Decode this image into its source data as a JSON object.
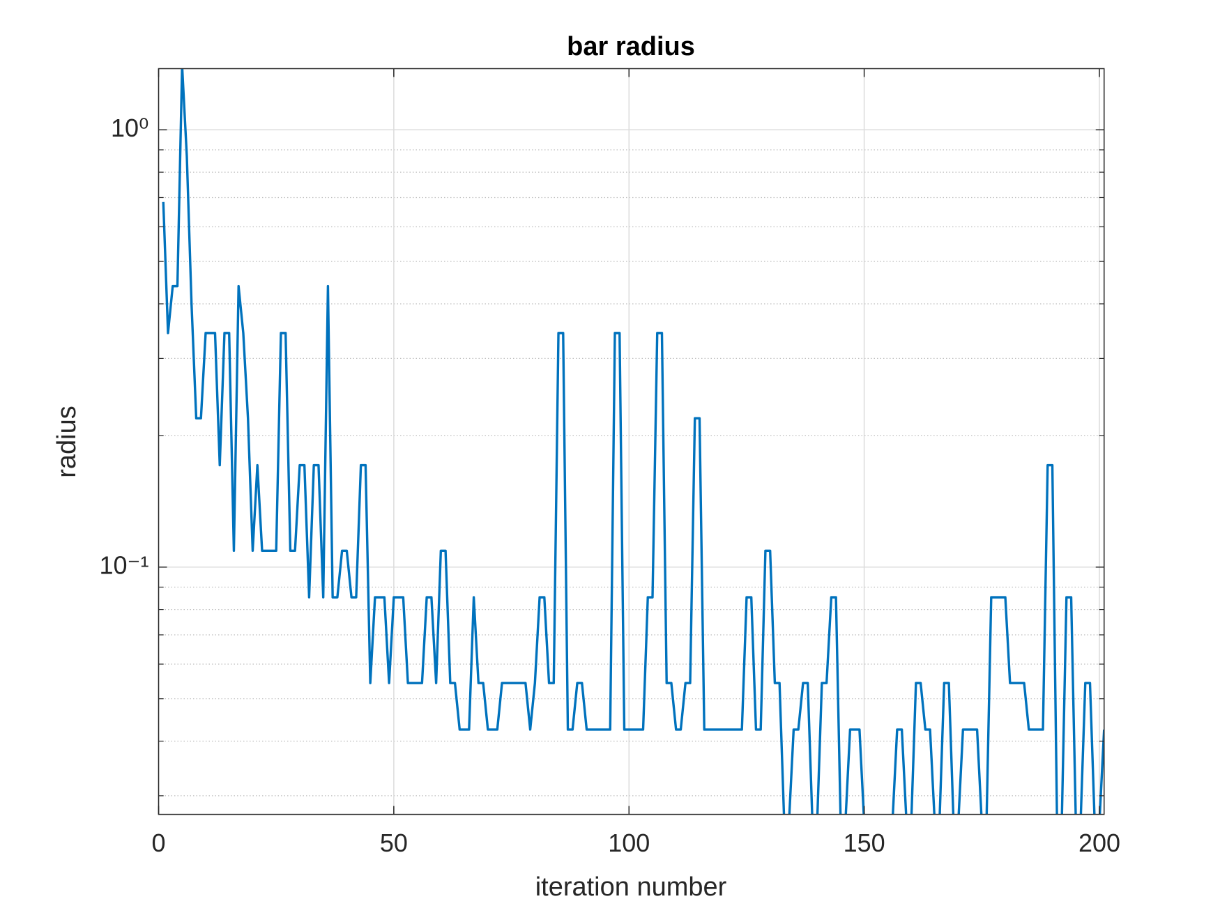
{
  "chart_data": {
    "type": "line",
    "title": "bar radius",
    "xlabel": "iteration number",
    "ylabel": "radius",
    "yscale": "log",
    "grid": true,
    "minor_grid": true,
    "xlim": [
      0,
      201
    ],
    "xticks": [
      0,
      50,
      100,
      150,
      200
    ],
    "ylim": [
      0.0272,
      1.38
    ],
    "yticks": [
      {
        "value": 0.1,
        "label": "10⁻¹"
      },
      {
        "value": 1,
        "label": "10⁰"
      }
    ],
    "yminorticks": [
      0.03,
      0.04,
      0.05,
      0.06,
      0.07,
      0.08,
      0.09,
      0.2,
      0.3,
      0.4,
      0.5,
      0.6,
      0.7,
      0.8,
      0.9
    ],
    "x": [
      1,
      2,
      3,
      4,
      5,
      6,
      7,
      8,
      9,
      10,
      11,
      12,
      13,
      14,
      15,
      16,
      17,
      18,
      19,
      20,
      21,
      22,
      23,
      24,
      25,
      26,
      27,
      28,
      29,
      30,
      31,
      32,
      33,
      34,
      35,
      36,
      37,
      38,
      39,
      40,
      41,
      42,
      43,
      44,
      45,
      46,
      47,
      48,
      49,
      50,
      51,
      52,
      53,
      54,
      55,
      56,
      57,
      58,
      59,
      60,
      61,
      62,
      63,
      64,
      65,
      66,
      67,
      68,
      69,
      70,
      71,
      72,
      73,
      74,
      75,
      76,
      77,
      78,
      79,
      80,
      81,
      82,
      83,
      84,
      85,
      86,
      87,
      88,
      89,
      90,
      91,
      92,
      93,
      94,
      95,
      96,
      97,
      98,
      99,
      100,
      101,
      102,
      103,
      104,
      105,
      106,
      107,
      108,
      109,
      110,
      111,
      112,
      113,
      114,
      115,
      116,
      117,
      118,
      119,
      120,
      121,
      122,
      123,
      124,
      125,
      126,
      127,
      128,
      129,
      130,
      131,
      132,
      133,
      134,
      135,
      136,
      137,
      138,
      139,
      140,
      141,
      142,
      143,
      144,
      145,
      146,
      147,
      148,
      149,
      150,
      151,
      152,
      153,
      154,
      155,
      156,
      157,
      158,
      159,
      160,
      161,
      162,
      163,
      164,
      165,
      166,
      167,
      168,
      169,
      170,
      171,
      172,
      173,
      174,
      175,
      176,
      177,
      178,
      179,
      180,
      181,
      182,
      183,
      184,
      185,
      186,
      187,
      188,
      189,
      190,
      191,
      192,
      193,
      194,
      195,
      196,
      197,
      198,
      199,
      200,
      201
    ],
    "series": [
      {
        "name": "radius",
        "color": "#0072bd",
        "values": [
          0.684,
          0.343,
          0.439,
          0.439,
          1.4,
          0.87,
          0.4,
          0.219,
          0.219,
          0.343,
          0.343,
          0.343,
          0.171,
          0.343,
          0.343,
          0.109,
          0.439,
          0.343,
          0.219,
          0.109,
          0.171,
          0.109,
          0.109,
          0.109,
          0.109,
          0.343,
          0.343,
          0.109,
          0.109,
          0.171,
          0.171,
          0.0853,
          0.171,
          0.171,
          0.0853,
          0.439,
          0.0853,
          0.0853,
          0.109,
          0.109,
          0.0853,
          0.0853,
          0.171,
          0.171,
          0.0543,
          0.0853,
          0.0853,
          0.0853,
          0.0543,
          0.0853,
          0.0853,
          0.0853,
          0.0543,
          0.0543,
          0.0543,
          0.0543,
          0.0853,
          0.0853,
          0.0543,
          0.109,
          0.109,
          0.0543,
          0.0543,
          0.0425,
          0.0425,
          0.0425,
          0.0853,
          0.0543,
          0.0543,
          0.0425,
          0.0425,
          0.0425,
          0.0543,
          0.0543,
          0.0543,
          0.0543,
          0.0543,
          0.0543,
          0.0425,
          0.0543,
          0.0853,
          0.0853,
          0.0543,
          0.0543,
          0.343,
          0.343,
          0.0425,
          0.0425,
          0.0543,
          0.0543,
          0.0425,
          0.0425,
          0.0425,
          0.0425,
          0.0425,
          0.0425,
          0.343,
          0.343,
          0.0425,
          0.0425,
          0.0425,
          0.0425,
          0.0425,
          0.0853,
          0.0853,
          0.343,
          0.343,
          0.0543,
          0.0543,
          0.0425,
          0.0425,
          0.0543,
          0.0543,
          0.219,
          0.219,
          0.0425,
          0.0425,
          0.0425,
          0.0425,
          0.0425,
          0.0425,
          0.0425,
          0.0425,
          0.0425,
          0.0853,
          0.0853,
          0.0425,
          0.0425,
          0.109,
          0.109,
          0.0543,
          0.0543,
          0.026,
          0.026,
          0.0425,
          0.0425,
          0.0543,
          0.0543,
          0.026,
          0.026,
          0.0543,
          0.0543,
          0.0853,
          0.0853,
          0.026,
          0.026,
          0.0425,
          0.0425,
          0.0425,
          0.026,
          0.026,
          0.026,
          0.026,
          0.026,
          0.026,
          0.026,
          0.0425,
          0.0425,
          0.026,
          0.026,
          0.0543,
          0.0543,
          0.0425,
          0.0425,
          0.026,
          0.026,
          0.0543,
          0.0543,
          0.026,
          0.026,
          0.0425,
          0.0425,
          0.0425,
          0.0425,
          0.026,
          0.026,
          0.0853,
          0.0853,
          0.0853,
          0.0853,
          0.0543,
          0.0543,
          0.0543,
          0.0543,
          0.0425,
          0.0425,
          0.0425,
          0.0425,
          0.171,
          0.171,
          0.026,
          0.026,
          0.0853,
          0.0853,
          0.026,
          0.026,
          0.0543,
          0.0543,
          0.026,
          0.026,
          0.0425
        ]
      }
    ]
  }
}
